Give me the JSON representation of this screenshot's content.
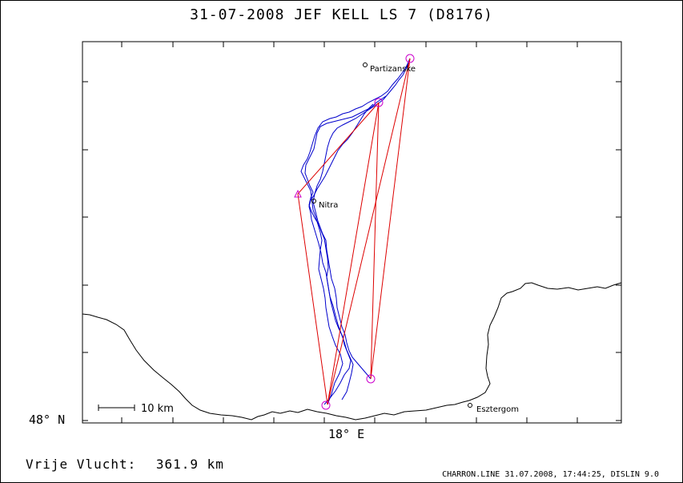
{
  "title": "31-07-2008    JEF KELL    LS 7 (D8176)",
  "axes": {
    "lat_label": "48° N",
    "lon_label": "18° E"
  },
  "scale_bar": {
    "label": "10 km",
    "km": 10
  },
  "towns": [
    {
      "name": "Partizanske"
    },
    {
      "name": "Nitra"
    },
    {
      "name": "Esztergom"
    }
  ],
  "summary": {
    "distance_label": "Vrije Vlucht:",
    "distance_value": "361.9 km"
  },
  "footer": "CHARRON.LINE 31.07.2008, 17:44:25, DISLIN 9.0",
  "colors": {
    "track": "#0000cc",
    "task": "#dd0000",
    "turnpoint": "#cc00cc",
    "border": "#000000"
  }
}
